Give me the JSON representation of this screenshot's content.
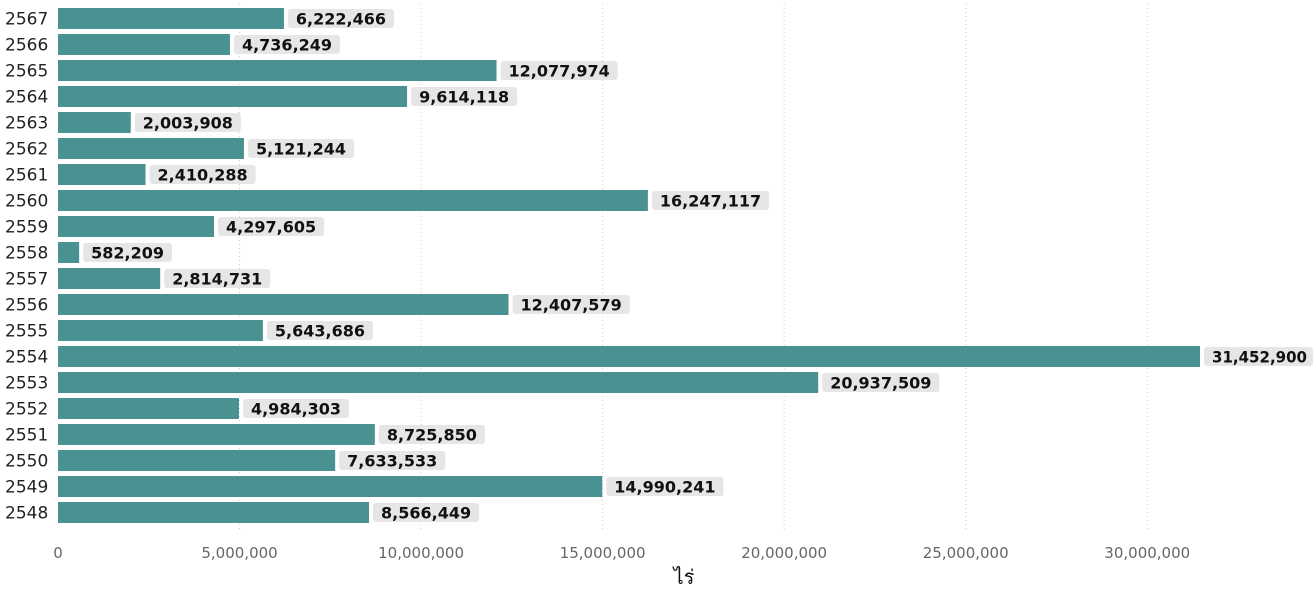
{
  "chart_data": {
    "type": "bar",
    "orientation": "horizontal",
    "categories": [
      "2567",
      "2566",
      "2565",
      "2564",
      "2563",
      "2562",
      "2561",
      "2560",
      "2559",
      "2558",
      "2557",
      "2556",
      "2555",
      "2554",
      "2553",
      "2552",
      "2551",
      "2550",
      "2549",
      "2548"
    ],
    "values": [
      6222466,
      4736249,
      12077974,
      9614118,
      2003908,
      5121244,
      2410288,
      16247117,
      4297605,
      582209,
      2814731,
      12407579,
      5643686,
      31452900,
      20937509,
      4984303,
      8725850,
      7633533,
      14990241,
      8566449
    ],
    "value_labels": [
      "6,222,466",
      "4,736,249",
      "12,077,974",
      "9,614,118",
      "2,003,908",
      "5,121,244",
      "2,410,288",
      "16,247,117",
      "4,297,605",
      "582,209",
      "2,814,731",
      "12,407,579",
      "5,643,686",
      "31,452,900",
      "20,937,509",
      "4,984,303",
      "8,725,850",
      "7,633,533",
      "14,990,241",
      "8,566,449"
    ],
    "xlabel": "ไร่",
    "xlim": [
      0,
      34500000
    ],
    "x_ticks": [
      0,
      5000000,
      10000000,
      15000000,
      20000000,
      25000000,
      30000000
    ],
    "x_tick_labels": [
      "0",
      "5,000,000",
      "10,000,000",
      "15,000,000",
      "20,000,000",
      "25,000,000",
      "30,000,000"
    ],
    "grid": "vertical dotted",
    "legend": "none",
    "colors": {
      "bar": "#4a9192",
      "label_background": "#e6e6e6",
      "grid": "#cccccc"
    }
  }
}
